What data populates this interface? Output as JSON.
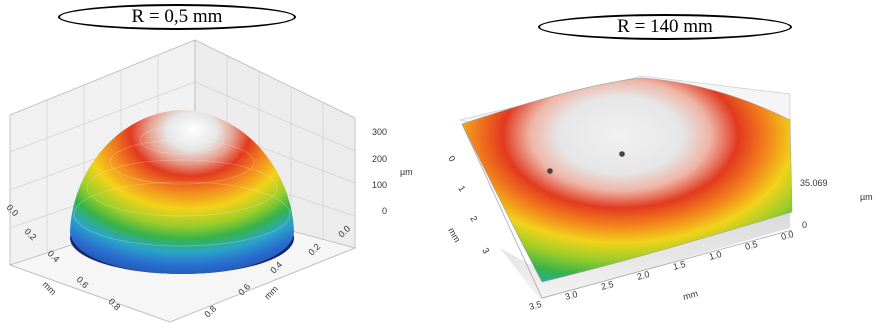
{
  "left": {
    "title": "R = 0,5 mm",
    "z_unit": "µm",
    "z_ticks": [
      "300",
      "200",
      "100",
      "0"
    ],
    "x_ticks": [
      "0.0",
      "0.2",
      "0.4",
      "0.6",
      "0.8"
    ],
    "x_unit": "mm",
    "y_ticks": [
      "0.0",
      "0.2",
      "0.4",
      "0.6",
      "0.8"
    ],
    "y_unit": "mm"
  },
  "right": {
    "title": "R = 140 mm",
    "z_unit": "µm",
    "z_ticks": [
      "35.069",
      "0"
    ],
    "left_ticks": [
      "0",
      "1",
      "2",
      "3"
    ],
    "left_unit": "mm",
    "bottom_ticks": [
      "3.5",
      "3.0",
      "2.5",
      "2.0",
      "1.5",
      "1.0",
      "0.5",
      "0.0"
    ],
    "bottom_unit": "mm"
  },
  "colors": {
    "peak": "#f4f4f4",
    "high": "#e23a1f",
    "mid": "#f2d21a",
    "low_mid": "#37b34a",
    "low": "#2a8fd8",
    "base": "#1c2f8c"
  }
}
